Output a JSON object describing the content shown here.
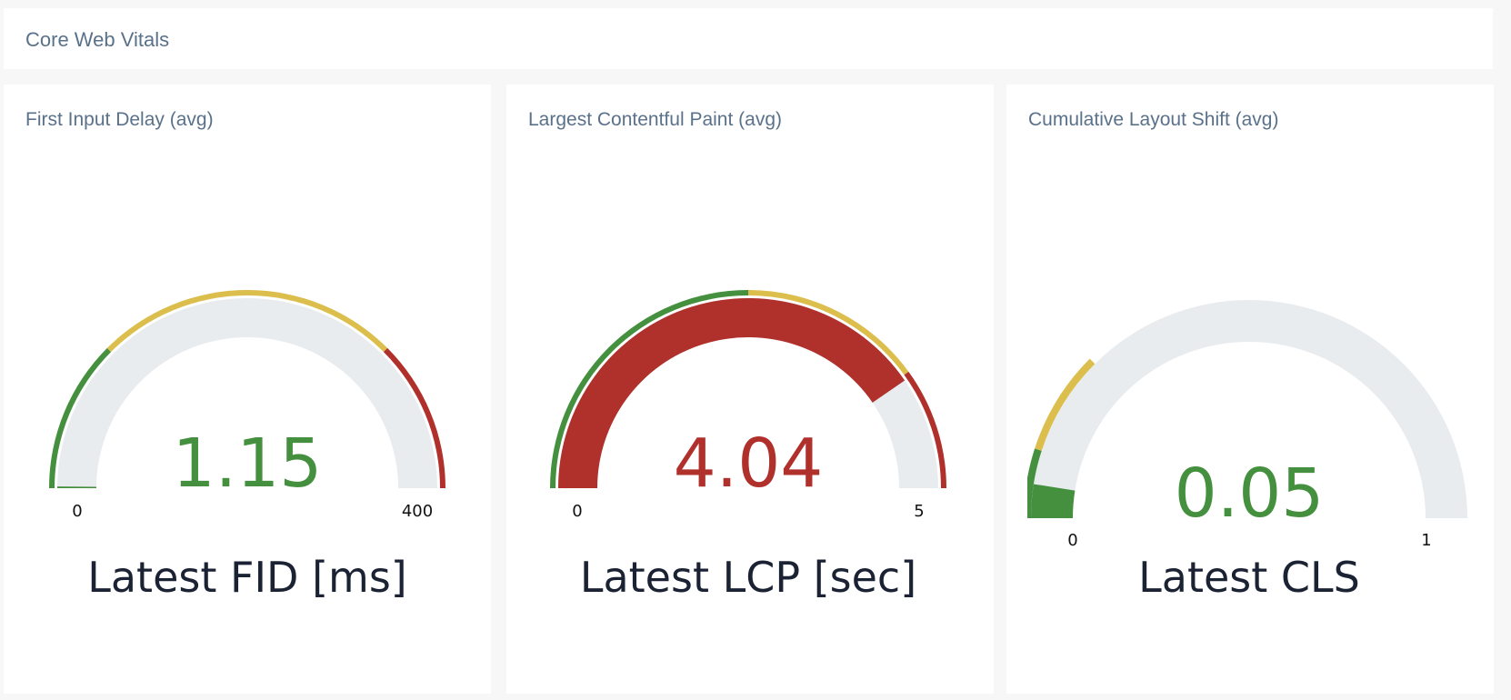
{
  "header": {
    "title": "Core Web Vitals"
  },
  "colors": {
    "good": "#45903f",
    "needs_improvement": "#dbbe4c",
    "poor": "#b0302b",
    "track": "#e9ecef",
    "label": "#1a2233"
  },
  "panels": [
    {
      "title": "First Input Delay (avg)",
      "value": 1.15,
      "value_text": "1.15",
      "min": 0,
      "max": 400,
      "min_label": "0",
      "max_label": "400",
      "thresholds": [
        {
          "from": 0,
          "to": 100,
          "status": "good"
        },
        {
          "from": 100,
          "to": 300,
          "status": "needs_improvement"
        },
        {
          "from": 300,
          "to": 400,
          "status": "poor"
        }
      ],
      "status": "good",
      "label": "Latest FID [ms]"
    },
    {
      "title": "Largest Contentful Paint (avg)",
      "value": 4.04,
      "value_text": "4.04",
      "min": 0,
      "max": 5,
      "min_label": "0",
      "max_label": "5",
      "thresholds": [
        {
          "from": 0,
          "to": 2.5,
          "status": "good"
        },
        {
          "from": 2.5,
          "to": 4,
          "status": "needs_improvement"
        },
        {
          "from": 4,
          "to": 5,
          "status": "poor"
        }
      ],
      "status": "poor",
      "label": "Latest LCP [sec]"
    },
    {
      "title": "Cumulative Layout Shift (avg)",
      "value": 0.05,
      "value_text": "0.05",
      "min": 0,
      "max": 1,
      "min_label": "0",
      "max_label": "1",
      "thresholds": [
        {
          "from": 0,
          "to": 0.1,
          "status": "good"
        },
        {
          "from": 0.1,
          "to": 0.25,
          "status": "needs_improvement"
        }
      ],
      "status": "good",
      "label": "Latest CLS"
    }
  ]
}
